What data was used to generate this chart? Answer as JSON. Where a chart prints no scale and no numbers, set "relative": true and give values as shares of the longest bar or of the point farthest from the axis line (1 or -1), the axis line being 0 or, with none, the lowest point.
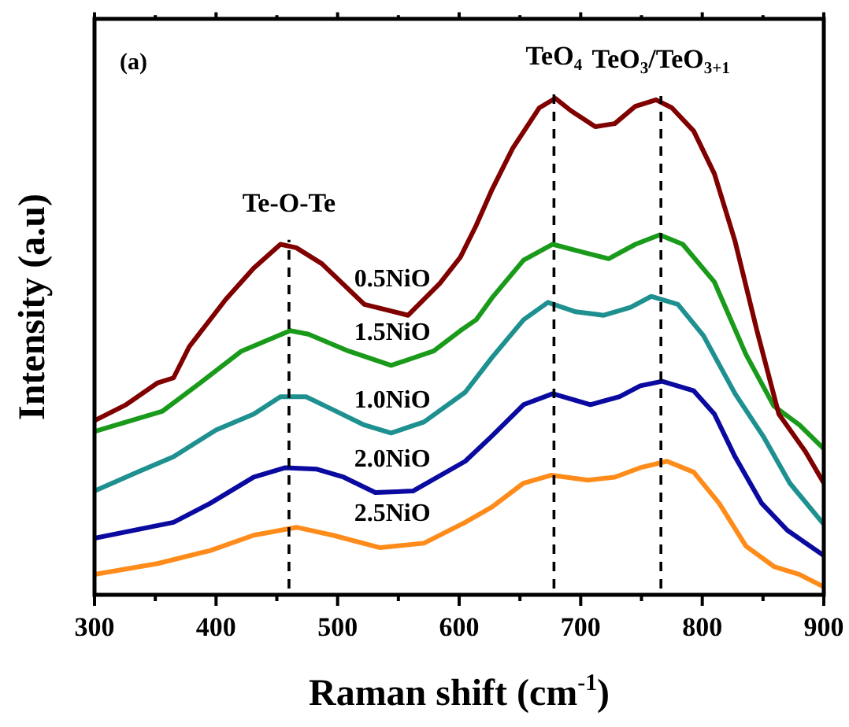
{
  "chart_data": {
    "type": "line",
    "relative": true,
    "xlabel": "Raman shift (cm$^{-1}$)",
    "ylabel": "Intensity (a.u)",
    "annotations": [
      "(a)"
    ],
    "xlim": [
      300,
      900
    ],
    "xticks": [
      300,
      {
        "value": 350,
        "label": null
      },
      400,
      {
        "value": 450,
        "label": null
      },
      500,
      {
        "value": 550,
        "label": null
      },
      600,
      {
        "value": 650,
        "label": null
      },
      700,
      {
        "value": 750,
        "label": null
      },
      800,
      {
        "value": 850,
        "label": null
      },
      900
    ],
    "ref_lines": [
      {
        "axis": "x",
        "value": 460,
        "label": "Te-O-Te",
        "line_style": "dashed",
        "color": "#000000"
      },
      {
        "axis": "x",
        "value": 678,
        "label": "TeO$_{4}$",
        "line_style": "dashed",
        "color": "#000000"
      },
      {
        "axis": "x",
        "value": 766,
        "label": "TeO$_{3}$/TeO$_{3+1}$",
        "line_style": "dashed",
        "color": "#000000"
      }
    ],
    "series": [
      {
        "name": "0.5NiO",
        "color": "#800000",
        "x": [
          300,
          326,
          352,
          365,
          378,
          408,
          431,
          453,
          466,
          487,
          522,
          558,
          584,
          601,
          614,
          627,
          644,
          666,
          679,
          692,
          712,
          728,
          745,
          762,
          775,
          793,
          810,
          827,
          845,
          863,
          885,
          900
        ],
        "values": [
          0.351,
          0.383,
          0.427,
          0.437,
          0.5,
          0.595,
          0.658,
          0.706,
          0.699,
          0.667,
          0.585,
          0.563,
          0.627,
          0.68,
          0.744,
          0.816,
          0.899,
          0.981,
          1.0,
          0.975,
          0.943,
          0.949,
          0.984,
          0.997,
          0.981,
          0.934,
          0.848,
          0.712,
          0.532,
          0.364,
          0.288,
          0.225
        ]
      },
      {
        "name": "1.5NiO",
        "color": "#1a9a1a",
        "x": [
          300,
          356,
          387,
          421,
          461,
          476,
          509,
          544,
          579,
          601,
          614,
          627,
          653,
          677,
          702,
          723,
          745,
          765,
          784,
          810,
          836,
          859,
          880,
          900
        ],
        "values": [
          0.329,
          0.37,
          0.427,
          0.491,
          0.532,
          0.525,
          0.491,
          0.462,
          0.491,
          0.532,
          0.554,
          0.598,
          0.674,
          0.706,
          0.69,
          0.677,
          0.706,
          0.725,
          0.706,
          0.63,
          0.484,
          0.38,
          0.342,
          0.294
        ]
      },
      {
        "name": "1.0NiO",
        "color": "#1f9090",
        "x": [
          300,
          335,
          365,
          400,
          431,
          453,
          474,
          496,
          522,
          544,
          571,
          605,
          627,
          653,
          673,
          696,
          719,
          741,
          758,
          780,
          801,
          827,
          850,
          872,
          900
        ],
        "values": [
          0.209,
          0.247,
          0.278,
          0.332,
          0.364,
          0.399,
          0.399,
          0.373,
          0.342,
          0.326,
          0.348,
          0.408,
          0.478,
          0.554,
          0.589,
          0.57,
          0.563,
          0.579,
          0.601,
          0.585,
          0.522,
          0.405,
          0.32,
          0.225,
          0.142
        ]
      },
      {
        "name": "2.0NiO",
        "color": "#0a0aa0",
        "x": [
          300,
          365,
          395,
          431,
          457,
          483,
          505,
          531,
          562,
          605,
          627,
          653,
          677,
          708,
          732,
          749,
          767,
          793,
          810,
          827,
          849,
          870,
          900
        ],
        "values": [
          0.114,
          0.146,
          0.184,
          0.237,
          0.256,
          0.253,
          0.237,
          0.206,
          0.209,
          0.269,
          0.32,
          0.383,
          0.405,
          0.383,
          0.399,
          0.421,
          0.43,
          0.411,
          0.364,
          0.278,
          0.184,
          0.13,
          0.079
        ]
      },
      {
        "name": "2.5NiO",
        "color": "#ff8c1a",
        "x": [
          300,
          352,
          395,
          431,
          466,
          496,
          535,
          571,
          605,
          627,
          653,
          676,
          706,
          728,
          749,
          771,
          793,
          814,
          836,
          859,
          880,
          900
        ],
        "values": [
          0.041,
          0.063,
          0.089,
          0.12,
          0.136,
          0.12,
          0.095,
          0.104,
          0.146,
          0.177,
          0.225,
          0.241,
          0.231,
          0.237,
          0.256,
          0.269,
          0.247,
          0.184,
          0.098,
          0.057,
          0.041,
          0.016
        ]
      }
    ]
  }
}
